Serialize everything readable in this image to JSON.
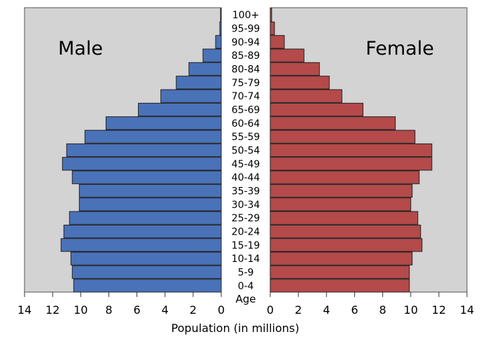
{
  "chart_data": {
    "type": "bar",
    "subtype": "population-pyramid",
    "title": "",
    "xlabel": "Population (in millions)",
    "age_axis_label": "Age",
    "xlim": [
      0,
      14
    ],
    "x_ticks": [
      0,
      2,
      4,
      6,
      8,
      10,
      12,
      14
    ],
    "grid": false,
    "categories": [
      "100+",
      "95-99",
      "90-94",
      "85-89",
      "80-84",
      "75-79",
      "70-74",
      "65-69",
      "60-64",
      "55-59",
      "50-54",
      "45-49",
      "40-44",
      "35-39",
      "30-34",
      "25-29",
      "20-24",
      "15-19",
      "10-14",
      "5-9",
      "0-4"
    ],
    "series": [
      {
        "name": "Male",
        "side": "left",
        "color": "#4a72b8",
        "values": [
          0.05,
          0.1,
          0.4,
          1.3,
          2.3,
          3.2,
          4.3,
          5.9,
          8.2,
          9.7,
          11.0,
          11.3,
          10.6,
          10.1,
          10.1,
          10.8,
          11.2,
          11.4,
          10.7,
          10.6,
          10.5
        ]
      },
      {
        "name": "Female",
        "side": "right",
        "color": "#b44a4a",
        "values": [
          0.1,
          0.3,
          1.0,
          2.4,
          3.5,
          4.2,
          5.1,
          6.6,
          8.9,
          10.3,
          11.5,
          11.5,
          10.6,
          10.1,
          10.0,
          10.5,
          10.7,
          10.8,
          10.1,
          9.9,
          9.9
        ]
      }
    ]
  }
}
